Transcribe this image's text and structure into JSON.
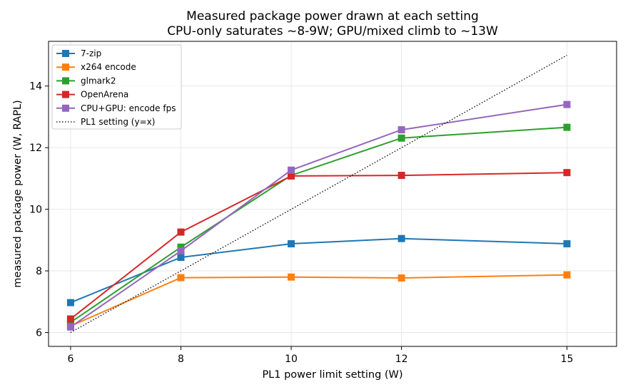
{
  "chart_data": {
    "type": "line",
    "title": "Measured package power drawn at each setting",
    "subtitle": "CPU-only saturates ~8-9W; GPU/mixed climb to ~13W",
    "xlabel": "PL1 power limit setting (W)",
    "ylabel": "measured package power (W, RAPL)",
    "x": [
      6,
      8,
      10,
      12,
      15
    ],
    "xticks": [
      "6",
      "8",
      "10",
      "12",
      "15"
    ],
    "yticks": [
      "6",
      "8",
      "10",
      "12",
      "14"
    ],
    "xlim": [
      5.6,
      15.9
    ],
    "ylim": [
      5.55,
      15.45
    ],
    "grid": true,
    "legend_position": "top-left",
    "series": [
      {
        "name": "7-zip",
        "color": "#1f77b4",
        "marker": "square",
        "values": [
          6.97,
          8.44,
          8.88,
          9.05,
          8.88
        ]
      },
      {
        "name": "x264 encode",
        "color": "#ff7f0e",
        "marker": "square",
        "values": [
          6.21,
          7.78,
          7.8,
          7.77,
          7.87
        ]
      },
      {
        "name": "glmark2",
        "color": "#2ca02c",
        "marker": "square",
        "values": [
          6.33,
          8.77,
          11.1,
          12.31,
          12.66
        ]
      },
      {
        "name": "OpenArena",
        "color": "#d62728",
        "marker": "square",
        "values": [
          6.44,
          9.26,
          11.08,
          11.1,
          11.19
        ]
      },
      {
        "name": "CPU+GPU: encode fps",
        "color": "#9467bd",
        "marker": "square",
        "values": [
          6.18,
          8.65,
          11.27,
          12.58,
          13.4
        ]
      },
      {
        "name": "PL1 setting (y=x)",
        "color": "#000000",
        "style": "dotted",
        "x": [
          6,
          15
        ],
        "values": [
          6,
          15
        ]
      }
    ]
  }
}
